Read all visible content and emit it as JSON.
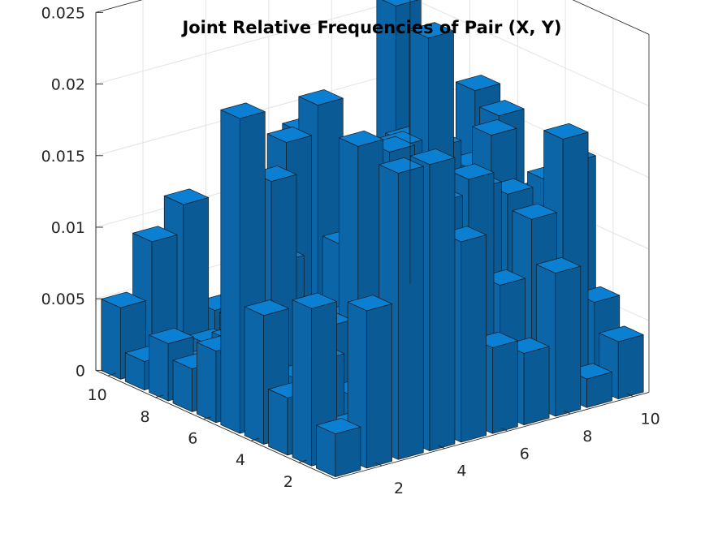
{
  "chart_data": {
    "type": "bar3",
    "title": "Joint Relative Frequencies of Pair (X, Y)",
    "x_ticks": [
      "2",
      "4",
      "6",
      "8",
      "10"
    ],
    "y_ticks": [
      "2",
      "4",
      "6",
      "8",
      "10"
    ],
    "z_ticks": [
      "0",
      "0.005",
      "0.01",
      "0.015",
      "0.02",
      "0.025"
    ],
    "x_values": [
      1,
      2,
      3,
      4,
      5,
      6,
      7,
      8,
      9,
      10
    ],
    "y_values": [
      1,
      2,
      3,
      4,
      5,
      6,
      7,
      8,
      9,
      10
    ],
    "zlim": [
      0,
      0.025
    ],
    "grid": true,
    "bar_color": "#0072BD",
    "z": [
      [
        0.003,
        0.011,
        0.02,
        0.02,
        0.014,
        0.006,
        0.005,
        0.01,
        0.002,
        0.004
      ],
      [
        0.011,
        0.002,
        0.004,
        0.007,
        0.016,
        0.017,
        0.009,
        0.013,
        0.018,
        0.006
      ],
      [
        0.004,
        0.006,
        0.003,
        0.005,
        0.005,
        0.012,
        0.015,
        0.014,
        0.011,
        0.015
      ],
      [
        0.009,
        0.004,
        0.007,
        0.019,
        0.018,
        0.004,
        0.009,
        0.01,
        0.008,
        0.013
      ],
      [
        0.022,
        0.017,
        0.007,
        0.006,
        0.014,
        0.017,
        0.024,
        0.013,
        0.016,
        0.011
      ],
      [
        0.005,
        0.008,
        0.01,
        0.002,
        0.01,
        0.003,
        0.016,
        0.015,
        0.013,
        0.016
      ],
      [
        0.003,
        0.002,
        0.012,
        0.017,
        0.019,
        0.003,
        0.003,
        0.007,
        0.006,
        0.017
      ],
      [
        0.004,
        0.002,
        0.003,
        0.001,
        0.007,
        0.003,
        0.005,
        0.002,
        0.002,
        0.009
      ],
      [
        0.002,
        0.001,
        0.002,
        0.003,
        0.003,
        0.015,
        0.005,
        0.006,
        0.022,
        0.01
      ],
      [
        0.005,
        0.009,
        0.011,
        0.003,
        0.002,
        0.008,
        0.002,
        0.01,
        0.006,
        0.002
      ]
    ]
  }
}
